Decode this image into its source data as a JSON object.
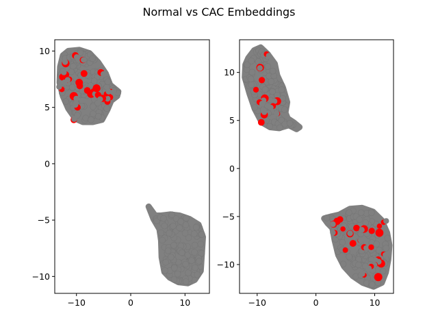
{
  "figure": {
    "title": "Normal vs CAC Embeddings"
  },
  "colors": {
    "normal": "#808080",
    "cac": "#ff0000",
    "axes": "#000000"
  },
  "chart_data": [
    {
      "type": "scatter",
      "title": "",
      "xlabel": "",
      "ylabel": "",
      "xlim": [
        -14,
        14.5
      ],
      "ylim": [
        -11.5,
        11
      ],
      "xticks": [
        -10,
        0,
        10
      ],
      "yticks": [
        -10,
        -5,
        0,
        5,
        10
      ],
      "grid": false,
      "legend": "none",
      "series": [
        {
          "color": "#808080",
          "clusters": [
            {
              "shape": "blob",
              "outline": [
                [
                  -12.5,
                  9.6
                ],
                [
                  -11.5,
                  10.0
                ],
                [
                  -9.5,
                  10.1
                ],
                [
                  -7.6,
                  9.8
                ],
                [
                  -6.0,
                  9.0
                ],
                [
                  -4.6,
                  8.0
                ],
                [
                  -3.8,
                  7.0
                ],
                [
                  -2.3,
                  6.4
                ],
                [
                  -2.5,
                  6.0
                ],
                [
                  -3.6,
                  5.6
                ],
                [
                  -4.3,
                  4.8
                ],
                [
                  -5.3,
                  3.9
                ],
                [
                  -7.0,
                  3.7
                ],
                [
                  -8.8,
                  3.7
                ],
                [
                  -10.2,
                  4.0
                ],
                [
                  -11.5,
                  4.9
                ],
                [
                  -12.5,
                  6.0
                ],
                [
                  -13.1,
                  7.2
                ],
                [
                  -13.0,
                  8.6
                ]
              ]
            },
            {
              "shape": "blob",
              "outline": [
                [
                  3.3,
                  -3.8
                ],
                [
                  4.5,
                  -4.6
                ],
                [
                  5.6,
                  -4.6
                ],
                [
                  7.3,
                  -4.5
                ],
                [
                  9.0,
                  -4.6
                ],
                [
                  10.8,
                  -4.9
                ],
                [
                  12.5,
                  -5.4
                ],
                [
                  13.3,
                  -6.5
                ],
                [
                  13.1,
                  -8.0
                ],
                [
                  12.9,
                  -9.5
                ],
                [
                  11.8,
                  -10.3
                ],
                [
                  10.5,
                  -10.6
                ],
                [
                  8.8,
                  -10.5
                ],
                [
                  7.2,
                  -10.1
                ],
                [
                  6.2,
                  -9.6
                ],
                [
                  5.7,
                  -8.3
                ],
                [
                  5.6,
                  -6.8
                ],
                [
                  5.3,
                  -5.8
                ],
                [
                  4.2,
                  -4.9
                ]
              ]
            }
          ]
        },
        {
          "color": "#ff0000",
          "points": [
            [
              -12.5,
              7.7
            ],
            [
              -12,
              7.9
            ],
            [
              -11.8,
              7.4
            ],
            [
              -12.7,
              6.6
            ],
            [
              -12,
              8.9
            ],
            [
              -10.5,
              6.0
            ],
            [
              -10.2,
              9.6
            ],
            [
              -9.5,
              7.2
            ],
            [
              -9.4,
              6.9
            ],
            [
              -8.6,
              8.0
            ],
            [
              -8.0,
              6.5
            ],
            [
              -7.3,
              6.2
            ],
            [
              -6.8,
              6.4
            ],
            [
              -6.3,
              6.7
            ],
            [
              -6.0,
              6.1
            ],
            [
              -5.5,
              8.1
            ],
            [
              -4.3,
              5.5
            ],
            [
              -3.8,
              5.9
            ],
            [
              -3.7,
              6.4
            ],
            [
              -4.5,
              6.2
            ],
            [
              -10.5,
              3.9
            ],
            [
              -9.8,
              5.0
            ],
            [
              -11.3,
              7.5
            ],
            [
              -8.8,
              9.2
            ],
            [
              -5.2,
              5.8
            ]
          ]
        }
      ]
    },
    {
      "type": "scatter",
      "title": "",
      "xlabel": "",
      "ylabel": "",
      "xlim": [
        -13,
        13.2
      ],
      "ylim": [
        -13,
        13.4
      ],
      "xticks": [
        -10,
        0,
        10
      ],
      "yticks": [
        -10,
        -5,
        0,
        5,
        10
      ],
      "grid": false,
      "legend": "none",
      "series": [
        {
          "color": "#808080",
          "clusters": [
            {
              "shape": "blob",
              "outline": [
                [
                  -11.5,
                  11.5
                ],
                [
                  -10.5,
                  12.3
                ],
                [
                  -9.4,
                  12.6
                ],
                [
                  -8.2,
                  11.9
                ],
                [
                  -7.0,
                  10.9
                ],
                [
                  -6.6,
                  9.7
                ],
                [
                  -5.6,
                  8.4
                ],
                [
                  -4.9,
                  6.9
                ],
                [
                  -5.2,
                  5.8
                ],
                [
                  -4.8,
                  5.2
                ],
                [
                  -3.8,
                  4.8
                ],
                [
                  -2.8,
                  4.3
                ],
                [
                  -3.3,
                  4.1
                ],
                [
                  -4.6,
                  4.5
                ],
                [
                  -6.3,
                  4.2
                ],
                [
                  -7.8,
                  4.3
                ],
                [
                  -9.2,
                  4.8
                ],
                [
                  -10.4,
                  6.2
                ],
                [
                  -11.3,
                  7.8
                ],
                [
                  -12.1,
                  9.5
                ],
                [
                  -12.0,
                  10.8
                ]
              ]
            },
            {
              "shape": "blob",
              "outline": [
                [
                  1.4,
                  -5.2
                ],
                [
                  2.6,
                  -5.0
                ],
                [
                  4.0,
                  -4.8
                ],
                [
                  5.8,
                  -4.2
                ],
                [
                  7.8,
                  -4.1
                ],
                [
                  9.7,
                  -4.5
                ],
                [
                  11.2,
                  -5.4
                ],
                [
                  12.1,
                  -6.7
                ],
                [
                  12.5,
                  -8.0
                ],
                [
                  12.3,
                  -9.5
                ],
                [
                  11.9,
                  -10.8
                ],
                [
                  11.2,
                  -11.9
                ],
                [
                  9.8,
                  -12.3
                ],
                [
                  8.0,
                  -11.9
                ],
                [
                  6.3,
                  -11.2
                ],
                [
                  4.8,
                  -10.2
                ],
                [
                  3.8,
                  -9.0
                ],
                [
                  3.2,
                  -7.5
                ],
                [
                  2.8,
                  -6.2
                ],
                [
                  2.0,
                  -5.7
                ]
              ]
            }
          ]
        },
        {
          "color": "#ff0000",
          "points": [
            [
              -9.5,
              10.5
            ],
            [
              -8.4,
              11.9
            ],
            [
              -9.2,
              9.2
            ],
            [
              -10.2,
              8.2
            ],
            [
              -8.7,
              7.3
            ],
            [
              -6.6,
              7.0
            ],
            [
              -7.3,
              6.5
            ],
            [
              -9.6,
              6.9
            ],
            [
              -8.8,
              5.6
            ],
            [
              -6.5,
              5.7
            ],
            [
              -9.3,
              4.8
            ],
            [
              3.6,
              -5.5
            ],
            [
              4.1,
              -5.3
            ],
            [
              3.0,
              -5.8
            ],
            [
              4.6,
              -6.3
            ],
            [
              5.8,
              -6.8
            ],
            [
              6.9,
              -6.2
            ],
            [
              8.2,
              -6.3
            ],
            [
              9.5,
              -6.5
            ],
            [
              10.8,
              -6.0
            ],
            [
              11.5,
              -5.6
            ],
            [
              10.8,
              -6.7
            ],
            [
              6.3,
              -7.8
            ],
            [
              8.2,
              -8.2
            ],
            [
              9.4,
              -8.2
            ],
            [
              5.0,
              -8.5
            ],
            [
              10.6,
              -9.5
            ],
            [
              11.1,
              -9.9
            ],
            [
              11.5,
              -8.9
            ],
            [
              10.1,
              -10.0
            ],
            [
              9.4,
              -10.2
            ],
            [
              10.6,
              -11.3
            ],
            [
              8.2,
              -11.1
            ],
            [
              7.5,
              -7.5
            ],
            [
              3.2,
              -6.7
            ]
          ]
        }
      ]
    }
  ]
}
